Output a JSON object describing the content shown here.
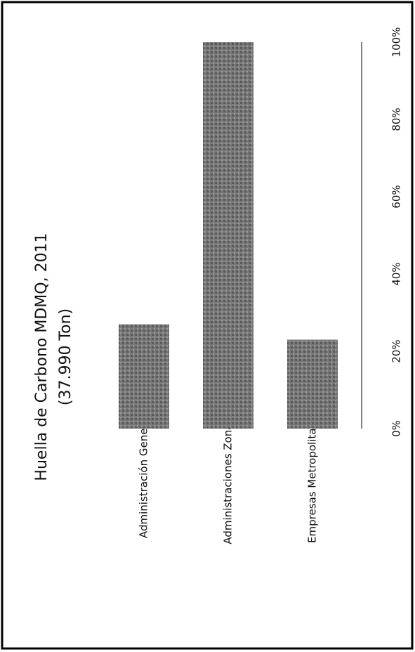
{
  "chart_data": {
    "type": "bar",
    "orientation": "horizontal",
    "title": "Huella de Carbono MDMQ, 2011",
    "subtitle": "(37.990 Ton)",
    "categories": [
      "Administración General",
      "Administraciones Zonales",
      "Empresas Metropolitanas"
    ],
    "values": [
      27,
      100,
      23
    ],
    "color": "#6e6e6e",
    "xlim": [
      0,
      100
    ],
    "xticks": [
      {
        "value": 0,
        "label": "0%"
      },
      {
        "value": 20,
        "label": "20%"
      },
      {
        "value": 40,
        "label": "40%"
      },
      {
        "value": 60,
        "label": "60%"
      },
      {
        "value": 80,
        "label": "80%"
      },
      {
        "value": 100,
        "label": "100%"
      }
    ],
    "grid": false
  }
}
